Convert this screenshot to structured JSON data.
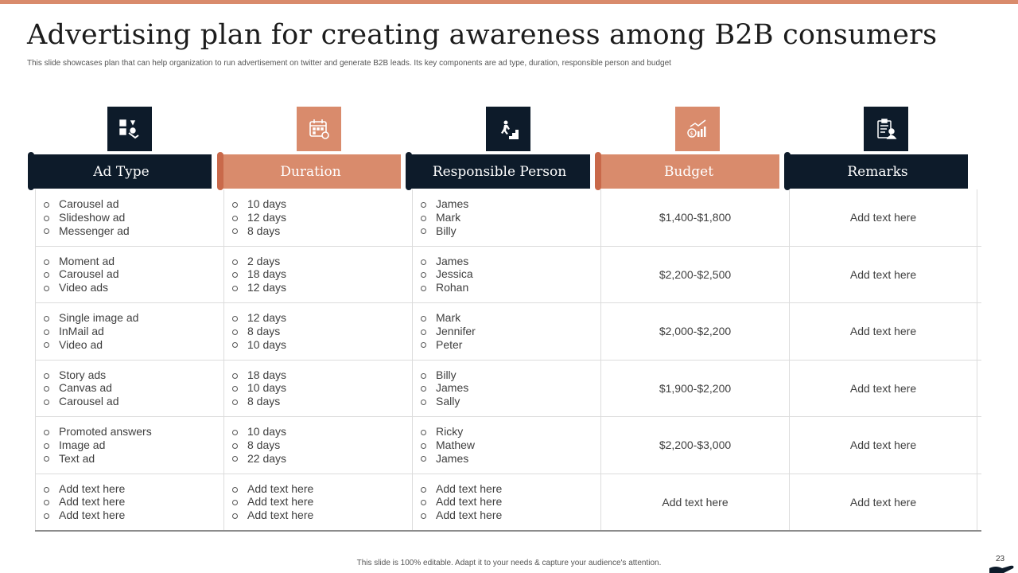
{
  "title": "Advertising plan for creating awareness among B2B consumers",
  "subtitle": "This slide showcases plan that can help organization to run advertisement on twitter and generate B2B leads. Its key components are ad type, duration, responsible person and budget",
  "columns": [
    {
      "label": "Ad Type",
      "icon": "ad-type-icon",
      "style": "dark"
    },
    {
      "label": "Duration",
      "icon": "calendar-icon",
      "style": "orange"
    },
    {
      "label": "Responsible Person",
      "icon": "person-stairs-icon",
      "style": "dark"
    },
    {
      "label": "Budget",
      "icon": "money-growth-icon",
      "style": "orange"
    },
    {
      "label": "Remarks",
      "icon": "clipboard-person-icon",
      "style": "dark"
    }
  ],
  "rows": [
    {
      "ad_types": [
        "Carousel ad",
        "Slideshow ad",
        "Messenger ad"
      ],
      "durations": [
        "10 days",
        "12 days",
        "8 days"
      ],
      "persons": [
        "James",
        "Mark",
        "Billy"
      ],
      "budget": "$1,400-$1,800",
      "remarks": "Add text here"
    },
    {
      "ad_types": [
        "Moment ad",
        "Carousel ad",
        "Video ads"
      ],
      "durations": [
        "2 days",
        "18 days",
        "12 days"
      ],
      "persons": [
        "James",
        "Jessica",
        "Rohan"
      ],
      "budget": "$2,200-$2,500",
      "remarks": "Add text here"
    },
    {
      "ad_types": [
        "Single image ad",
        "InMail ad",
        "Video ad"
      ],
      "durations": [
        "12 days",
        "8 days",
        "10 days"
      ],
      "persons": [
        "Mark",
        "Jennifer",
        "Peter"
      ],
      "budget": "$2,000-$2,200",
      "remarks": "Add text here"
    },
    {
      "ad_types": [
        "Story ads",
        "Canvas ad",
        "Carousel ad"
      ],
      "durations": [
        "18 days",
        "10 days",
        "8 days"
      ],
      "persons": [
        "Billy",
        "James",
        "Sally"
      ],
      "budget": "$1,900-$2,200",
      "remarks": "Add text here"
    },
    {
      "ad_types": [
        "Promoted answers",
        "Image ad",
        "Text ad"
      ],
      "durations": [
        "10 days",
        "8 days",
        "22 days"
      ],
      "persons": [
        "Ricky",
        "Mathew",
        "James"
      ],
      "budget": "$2,200-$3,000",
      "remarks": "Add text here"
    },
    {
      "ad_types": [
        "Add text here",
        "Add text here",
        "Add text here"
      ],
      "durations": [
        "Add text here",
        "Add text here",
        "Add text here"
      ],
      "persons": [
        "Add text here",
        "Add text here",
        "Add text here"
      ],
      "budget": "Add text here",
      "remarks": "Add text here"
    }
  ],
  "footer": "This slide is 100% editable. Adapt it to your needs & capture your audience's attention.",
  "page_number": "23",
  "colors": {
    "dark": "#0d1b2a",
    "accent": "#d98b6c"
  }
}
